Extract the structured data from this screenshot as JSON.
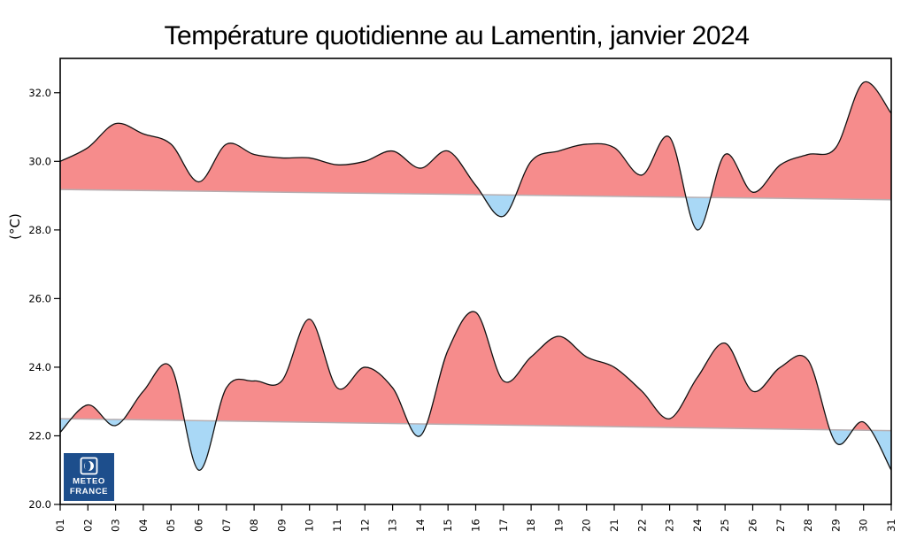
{
  "chart_data": {
    "type": "area",
    "title": "Température quotidienne au Lamentin, janvier 2024",
    "ylabel": "(°C)",
    "xlim": [
      1,
      31
    ],
    "ylim": [
      20,
      33
    ],
    "grid": false,
    "legend": "none",
    "x": [
      1,
      2,
      3,
      4,
      5,
      6,
      7,
      8,
      9,
      10,
      11,
      12,
      13,
      14,
      15,
      16,
      17,
      18,
      19,
      20,
      21,
      22,
      23,
      24,
      25,
      26,
      27,
      28,
      29,
      30,
      31
    ],
    "x_tick_labels": [
      "01",
      "02",
      "03",
      "04",
      "05",
      "06",
      "07",
      "08",
      "09",
      "10",
      "11",
      "12",
      "13",
      "14",
      "15",
      "16",
      "17",
      "18",
      "19",
      "20",
      "21",
      "22",
      "23",
      "24",
      "25",
      "26",
      "27",
      "28",
      "29",
      "30",
      "31"
    ],
    "y_ticks": [
      20,
      22,
      24,
      26,
      28,
      30,
      32
    ],
    "y_tick_labels": [
      "20.0",
      "22.0",
      "24.0",
      "26.0",
      "28.0",
      "30.0",
      "32.0"
    ],
    "series": [
      {
        "name": "temperature-max",
        "values": [
          30.0,
          30.4,
          31.1,
          30.8,
          30.5,
          29.4,
          30.5,
          30.2,
          30.1,
          30.1,
          29.9,
          30.0,
          30.3,
          29.8,
          30.3,
          29.3,
          28.4,
          30.0,
          30.3,
          30.5,
          30.4,
          29.6,
          30.7,
          28.0,
          30.2,
          29.1,
          29.9,
          30.2,
          30.4,
          32.3,
          31.4
        ]
      },
      {
        "name": "temperature-min",
        "values": [
          22.1,
          22.9,
          22.3,
          23.3,
          24.0,
          21.0,
          23.4,
          23.6,
          23.6,
          25.4,
          23.4,
          24.0,
          23.4,
          22.0,
          24.5,
          25.6,
          23.6,
          24.3,
          24.9,
          24.3,
          24.0,
          23.3,
          22.5,
          23.7,
          24.7,
          23.3,
          24.0,
          24.2,
          21.8,
          22.4,
          21.0
        ]
      },
      {
        "name": "normale-max",
        "type": "baseline",
        "start": 29.18,
        "end": 28.88
      },
      {
        "name": "normale-min",
        "type": "baseline",
        "start": 22.5,
        "end": 22.15
      }
    ],
    "colors": {
      "above_normal": "#f68c8c",
      "below_normal": "#a9d8f6",
      "curve": "#111111",
      "normal_line": "#b6aeb1",
      "axis": "#000000"
    }
  },
  "logo": {
    "line1": "METEO",
    "line2": "FRANCE",
    "bg": "#1d4e8c"
  }
}
